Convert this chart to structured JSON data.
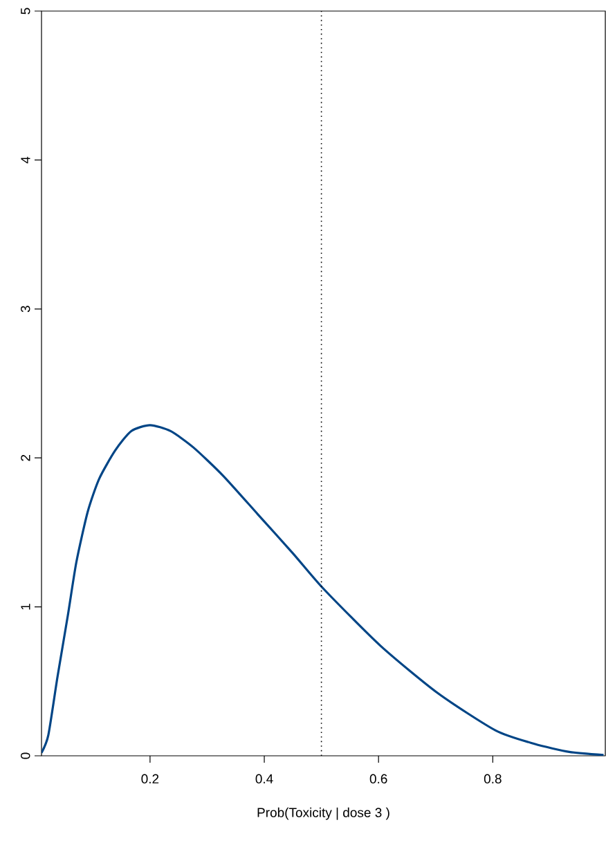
{
  "chart_data": {
    "type": "line",
    "xlabel": "Prob(Toxicity | dose 3 )",
    "xlim": [
      0.01,
      0.997
    ],
    "ylim": [
      0,
      5
    ],
    "xticks": [
      0.2,
      0.4,
      0.6,
      0.8
    ],
    "yticks": [
      0,
      1,
      2,
      3,
      4,
      5
    ],
    "series": [
      {
        "color": "#004586",
        "x": [
          0.01,
          0.022,
          0.038,
          0.056,
          0.071,
          0.091,
          0.111,
          0.139,
          0.167,
          0.2,
          0.236,
          0.276,
          0.328,
          0.389,
          0.45,
          0.504,
          0.603,
          0.704,
          0.805,
          0.873,
          0.934,
          0.994
        ],
        "values": [
          0.02,
          0.14,
          0.53,
          0.94,
          1.3,
          1.64,
          1.86,
          2.05,
          2.18,
          2.22,
          2.18,
          2.07,
          1.88,
          1.62,
          1.36,
          1.12,
          0.74,
          0.42,
          0.17,
          0.08,
          0.026,
          0.005
        ]
      }
    ],
    "ref_lines": [
      {
        "axis": "x",
        "value": 0.5,
        "line_style": "dotted",
        "color": "#000000"
      }
    ],
    "grid": false,
    "marker": "none",
    "line_style": "solid"
  }
}
